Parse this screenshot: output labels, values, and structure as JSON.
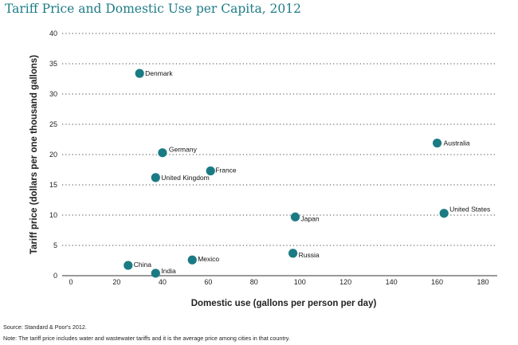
{
  "chart_data": {
    "type": "scatter",
    "title": "Tariff Price and Domestic Use per Capita, 2012",
    "xlabel": "Domestic use (gallons per person per day)",
    "ylabel": "Tariff price (dollars per one thousand gallons)",
    "xlim": [
      0,
      180
    ],
    "ylim": [
      0,
      40
    ],
    "xticks": [
      0,
      20,
      40,
      60,
      80,
      100,
      120,
      140,
      160,
      180
    ],
    "yticks": [
      0,
      5,
      10,
      15,
      20,
      25,
      30,
      35,
      40
    ],
    "grid": "horizontal dotted",
    "point_color": "#1b7b84",
    "points": [
      {
        "label": "Denmark",
        "x": 30,
        "y": 33.4
      },
      {
        "label": "Germany",
        "x": 40,
        "y": 20.3
      },
      {
        "label": "United Kingdom",
        "x": 37,
        "y": 16.2
      },
      {
        "label": "France",
        "x": 61,
        "y": 17.3
      },
      {
        "label": "Australia",
        "x": 160,
        "y": 21.9
      },
      {
        "label": "United States",
        "x": 163,
        "y": 10.3
      },
      {
        "label": "Japan",
        "x": 98,
        "y": 9.7
      },
      {
        "label": "Russia",
        "x": 97,
        "y": 3.7
      },
      {
        "label": "Mexico",
        "x": 53,
        "y": 2.6
      },
      {
        "label": "China",
        "x": 25,
        "y": 1.7
      },
      {
        "label": "India",
        "x": 37,
        "y": 0.4
      }
    ]
  },
  "footer": {
    "source": "Source: Standard & Poor's 2012.",
    "note": "Note: The tariff price includes water and wastewater tariffs and it is the average price among cities in that country."
  }
}
